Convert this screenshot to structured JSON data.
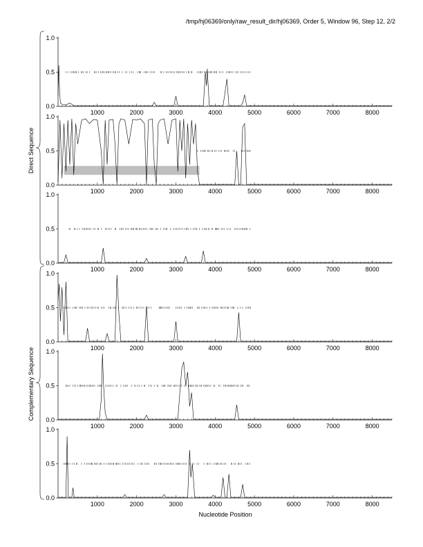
{
  "header": {
    "title": "/tmp/hj06369/only/raw_result_dir/hj06369, Order 5, Window 96, Step 12, 2/2"
  },
  "labels": {
    "xlabel": "Nucleotide Position",
    "group_direct": "Direct Sequence",
    "group_complementary": "Complementary Sequence"
  },
  "chart_data": [
    {
      "type": "line",
      "panel": 1,
      "group": "Direct Sequence",
      "xlim": [
        0,
        8500
      ],
      "ylim": [
        0,
        1
      ],
      "xticks": [
        1000,
        2000,
        3000,
        4000,
        5000,
        6000,
        7000,
        8000
      ],
      "yticks": [
        "0.0",
        "0.5",
        "1.0"
      ],
      "x": [
        0,
        20,
        40,
        60,
        100,
        200,
        300,
        400,
        2400,
        2450,
        2500,
        2950,
        3000,
        3050,
        3100,
        3700,
        3750,
        3780,
        3800,
        3850,
        4200,
        4250,
        4300,
        4350,
        4650,
        4700,
        4750,
        4800,
        8500
      ],
      "y": [
        0.15,
        0.6,
        0.2,
        0.05,
        0.03,
        0.02,
        0.05,
        0.01,
        0.01,
        0.06,
        0.01,
        0.01,
        0.15,
        0.01,
        0.01,
        0.01,
        0.5,
        0.3,
        0.55,
        0.01,
        0.01,
        0.2,
        0.4,
        0.01,
        0.01,
        0.05,
        0.17,
        0.01,
        0.01
      ],
      "marks_x_range": [
        200,
        4900
      ]
    },
    {
      "type": "line",
      "panel": 2,
      "group": "Direct Sequence",
      "xlim": [
        0,
        8500
      ],
      "ylim": [
        0,
        1
      ],
      "xticks": [
        1000,
        2000,
        3000,
        4000,
        5000,
        6000,
        7000,
        8000
      ],
      "yticks": [
        "0.0",
        "0.5",
        "1.0"
      ],
      "x": [
        0,
        50,
        100,
        150,
        200,
        250,
        300,
        350,
        400,
        450,
        500,
        600,
        700,
        800,
        900,
        1000,
        1100,
        1150,
        1200,
        1250,
        1300,
        1400,
        1450,
        1500,
        1550,
        1600,
        1700,
        1800,
        1900,
        2000,
        2100,
        2200,
        2250,
        2300,
        2400,
        2450,
        2500,
        2550,
        2600,
        2700,
        2800,
        2900,
        3000,
        3050,
        3100,
        3150,
        3200,
        3250,
        3300,
        3350,
        3400,
        3450,
        3500,
        3550,
        3600,
        3700,
        4500,
        4550,
        4600,
        4650,
        4700,
        4750,
        4800,
        4850,
        8500
      ],
      "y": [
        0.05,
        0.95,
        0.1,
        0.9,
        0.2,
        0.95,
        0.3,
        0.97,
        0.15,
        0.9,
        0.6,
        0.95,
        0.97,
        0.9,
        0.96,
        0.95,
        0.5,
        0.01,
        0.95,
        0.3,
        0.95,
        0.96,
        0.6,
        0.01,
        0.9,
        0.97,
        0.95,
        0.6,
        0.96,
        0.95,
        0.97,
        0.9,
        0.01,
        0.95,
        0.97,
        0.3,
        0.01,
        0.9,
        0.95,
        0.97,
        0.6,
        0.95,
        0.97,
        0.2,
        0.95,
        0.5,
        0.97,
        0.1,
        0.9,
        0.3,
        0.95,
        0.6,
        0.9,
        0.2,
        0.01,
        0.01,
        0.01,
        0.5,
        0.01,
        0.01,
        0.85,
        0.9,
        0.01,
        0.01,
        0.01
      ],
      "highlight": {
        "x_start": 150,
        "x_end": 3600,
        "y_low": 0.15,
        "y_high": 0.28
      },
      "marks_x_range": [
        3550,
        4900
      ]
    },
    {
      "type": "line",
      "panel": 3,
      "group": "Direct Sequence",
      "xlim": [
        0,
        8500
      ],
      "ylim": [
        0,
        1
      ],
      "xticks": [
        1000,
        2000,
        3000,
        4000,
        5000,
        6000,
        7000,
        8000
      ],
      "yticks": [
        "0.0",
        "0.5",
        "1.0"
      ],
      "x": [
        0,
        150,
        200,
        250,
        1100,
        1150,
        1200,
        2200,
        2250,
        2300,
        3200,
        3250,
        3300,
        3650,
        3700,
        3750,
        8500
      ],
      "y": [
        0.01,
        0.01,
        0.12,
        0.01,
        0.01,
        0.22,
        0.01,
        0.01,
        0.07,
        0.01,
        0.01,
        0.1,
        0.01,
        0.01,
        0.18,
        0.01,
        0.01
      ],
      "marks_x_range": [
        250,
        4900
      ]
    },
    {
      "type": "line",
      "panel": 4,
      "group": "Complementary Sequence",
      "xlim": [
        0,
        8500
      ],
      "ylim": [
        0,
        1
      ],
      "xticks": [
        1000,
        2000,
        3000,
        4000,
        5000,
        6000,
        7000,
        8000
      ],
      "yticks": [
        "0.0",
        "0.5",
        "1.0"
      ],
      "x": [
        0,
        30,
        60,
        100,
        150,
        200,
        250,
        700,
        750,
        800,
        1200,
        1250,
        1300,
        1450,
        1500,
        1550,
        1600,
        2200,
        2250,
        2300,
        2950,
        3000,
        3050,
        4550,
        4600,
        4650,
        8500
      ],
      "y": [
        0.6,
        0.85,
        0.3,
        0.8,
        0.1,
        0.88,
        0.01,
        0.01,
        0.2,
        0.01,
        0.01,
        0.12,
        0.01,
        0.01,
        0.98,
        0.4,
        0.01,
        0.01,
        0.52,
        0.01,
        0.01,
        0.3,
        0.01,
        0.01,
        0.43,
        0.01,
        0.01
      ],
      "marks_x_range": [
        150,
        4900
      ]
    },
    {
      "type": "line",
      "panel": 5,
      "group": "Complementary Sequence",
      "xlim": [
        0,
        8500
      ],
      "ylim": [
        0,
        1
      ],
      "xticks": [
        1000,
        2000,
        3000,
        4000,
        5000,
        6000,
        7000,
        8000
      ],
      "yticks": [
        "0.0",
        "0.5",
        "1.0"
      ],
      "x": [
        0,
        1050,
        1100,
        1130,
        1160,
        1200,
        1250,
        2200,
        2250,
        2300,
        3050,
        3100,
        3150,
        3200,
        3250,
        3300,
        3350,
        3400,
        3450,
        4500,
        4550,
        4600,
        8500
      ],
      "y": [
        0.01,
        0.01,
        0.3,
        0.97,
        0.5,
        0.1,
        0.01,
        0.01,
        0.07,
        0.01,
        0.01,
        0.4,
        0.75,
        0.85,
        0.5,
        0.7,
        0.2,
        0.4,
        0.01,
        0.01,
        0.22,
        0.01,
        0.01
      ],
      "marks_x_range": [
        200,
        4900
      ]
    },
    {
      "type": "line",
      "panel": 6,
      "group": "Complementary Sequence",
      "xlim": [
        0,
        8500
      ],
      "ylim": [
        0,
        1
      ],
      "xticks": [
        1000,
        2000,
        3000,
        4000,
        5000,
        6000,
        7000,
        8000
      ],
      "yticks": [
        "0.0",
        "0.5",
        "1.0"
      ],
      "x": [
        0,
        200,
        230,
        260,
        350,
        380,
        410,
        1650,
        1700,
        1750,
        2650,
        2700,
        2750,
        3300,
        3350,
        3380,
        3420,
        3480,
        3900,
        3950,
        4000,
        4150,
        4200,
        4250,
        4300,
        4350,
        4400,
        4650,
        4700,
        4750,
        8500
      ],
      "y": [
        0.01,
        0.01,
        0.9,
        0.01,
        0.01,
        0.15,
        0.01,
        0.01,
        0.05,
        0.01,
        0.01,
        0.05,
        0.01,
        0.01,
        0.7,
        0.3,
        0.5,
        0.01,
        0.01,
        0.04,
        0.01,
        0.01,
        0.3,
        0.01,
        0.01,
        0.35,
        0.01,
        0.01,
        0.2,
        0.01,
        0.01
      ],
      "marks_x_range": [
        150,
        4900
      ]
    }
  ]
}
